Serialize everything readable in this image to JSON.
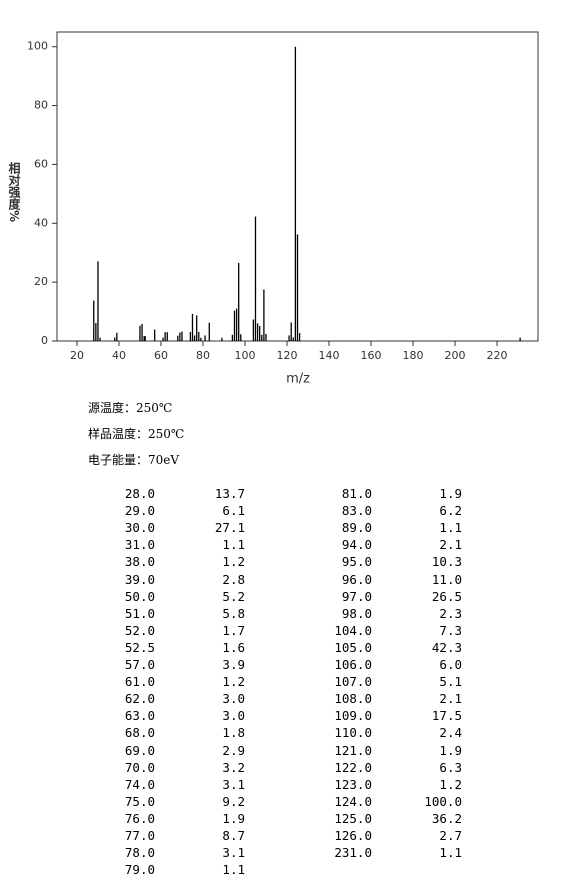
{
  "chart_data": {
    "type": "bar",
    "xlabel": "m/z",
    "ylabel": "相对强度%",
    "color": "#000000",
    "x": [
      28,
      29,
      30,
      31,
      38,
      39,
      50,
      51,
      52,
      52.5,
      57,
      61,
      62,
      63,
      68,
      69,
      70,
      74,
      75,
      76,
      77,
      78,
      79,
      81,
      83,
      89,
      94,
      95,
      96,
      97,
      98,
      104,
      105,
      106,
      107,
      108,
      109,
      110,
      121,
      122,
      123,
      124,
      125,
      126,
      231
    ],
    "values": [
      13.7,
      6.1,
      27.1,
      1.1,
      1.2,
      2.8,
      5.2,
      5.8,
      1.7,
      1.6,
      3.9,
      1.2,
      3.0,
      3.0,
      1.8,
      2.9,
      3.2,
      3.1,
      9.2,
      1.9,
      8.7,
      3.1,
      1.1,
      1.9,
      6.2,
      1.1,
      2.1,
      10.3,
      11.0,
      26.5,
      2.3,
      7.3,
      42.3,
      6.0,
      5.1,
      2.1,
      17.5,
      2.4,
      1.9,
      6.3,
      1.2,
      100,
      36.2,
      2.7,
      1.1
    ],
    "xlim": [
      10.5,
      239.5
    ],
    "ylim": [
      0,
      105
    ],
    "xticks": [
      20,
      40,
      60,
      80,
      100,
      120,
      140,
      160,
      180,
      200,
      220
    ],
    "yticks": [
      0,
      20,
      40,
      60,
      80,
      100
    ]
  },
  "info": [
    "源温度：250℃",
    "样品温度：250℃",
    "电子能量：70eV"
  ],
  "table": {
    "columns": [
      [
        [
          "28.0",
          "13.7"
        ],
        [
          "29.0",
          "6.1"
        ],
        [
          "30.0",
          "27.1"
        ],
        [
          "31.0",
          "1.1"
        ],
        [
          "38.0",
          "1.2"
        ],
        [
          "39.0",
          "2.8"
        ],
        [
          "50.0",
          "5.2"
        ],
        [
          "51.0",
          "5.8"
        ],
        [
          "52.0",
          "1.7"
        ],
        [
          "52.5",
          "1.6"
        ],
        [
          "57.0",
          "3.9"
        ],
        [
          "61.0",
          "1.2"
        ],
        [
          "62.0",
          "3.0"
        ],
        [
          "63.0",
          "3.0"
        ],
        [
          "68.0",
          "1.8"
        ],
        [
          "69.0",
          "2.9"
        ],
        [
          "70.0",
          "3.2"
        ],
        [
          "74.0",
          "3.1"
        ],
        [
          "75.0",
          "9.2"
        ],
        [
          "76.0",
          "1.9"
        ],
        [
          "77.0",
          "8.7"
        ],
        [
          "78.0",
          "3.1"
        ],
        [
          "79.0",
          "1.1"
        ]
      ],
      [
        [
          "81.0",
          "1.9"
        ],
        [
          "83.0",
          "6.2"
        ],
        [
          "89.0",
          "1.1"
        ],
        [
          "94.0",
          "2.1"
        ],
        [
          "95.0",
          "10.3"
        ],
        [
          "96.0",
          "11.0"
        ],
        [
          "97.0",
          "26.5"
        ],
        [
          "98.0",
          "2.3"
        ],
        [
          "104.0",
          "7.3"
        ],
        [
          "105.0",
          "42.3"
        ],
        [
          "106.0",
          "6.0"
        ],
        [
          "107.0",
          "5.1"
        ],
        [
          "108.0",
          "2.1"
        ],
        [
          "109.0",
          "17.5"
        ],
        [
          "110.0",
          "2.4"
        ],
        [
          "121.0",
          "1.9"
        ],
        [
          "122.0",
          "6.3"
        ],
        [
          "123.0",
          "1.2"
        ],
        [
          "124.0",
          "100.0"
        ],
        [
          "125.0",
          "36.2"
        ],
        [
          "126.0",
          "2.7"
        ],
        [
          "231.0",
          "1.1"
        ]
      ]
    ]
  }
}
